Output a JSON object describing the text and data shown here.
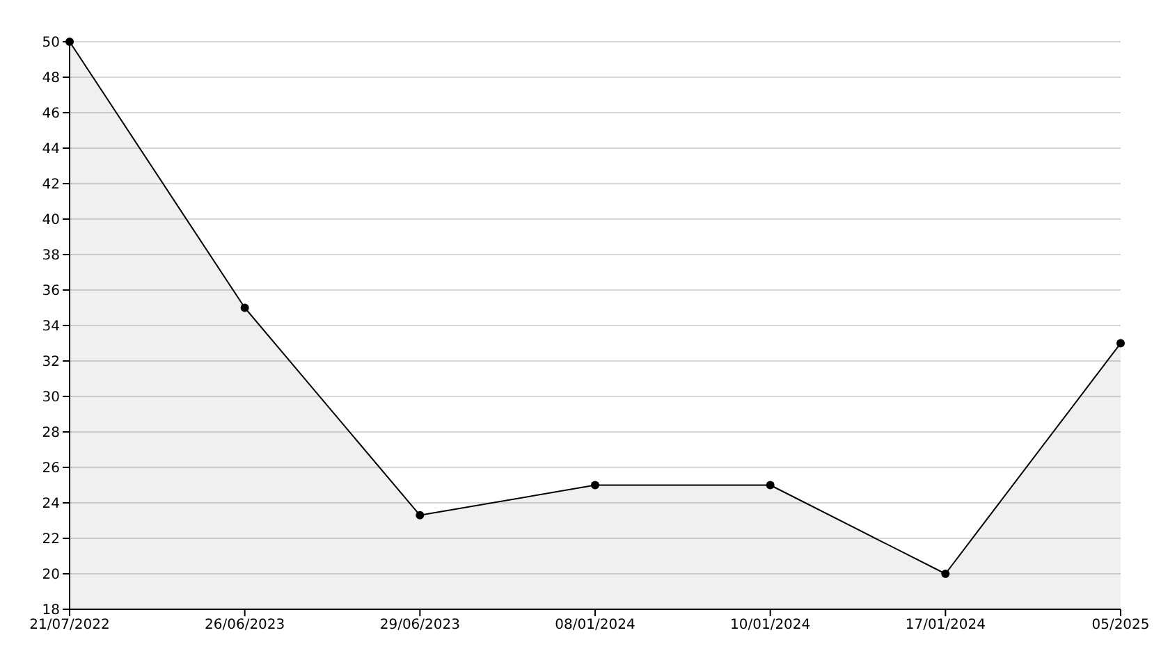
{
  "chart_data": {
    "type": "area",
    "categories": [
      "21/07/2022",
      "26/06/2023",
      "29/06/2023",
      "08/01/2024",
      "10/01/2024",
      "17/01/2024",
      "05/2025"
    ],
    "series": [
      {
        "color": "#000000",
        "values": [
          50,
          35,
          23.3,
          25,
          25,
          20,
          33
        ]
      }
    ],
    "ylim": [
      18,
      50
    ],
    "yticks": [
      18,
      20,
      22,
      24,
      26,
      28,
      30,
      32,
      34,
      36,
      38,
      40,
      42,
      44,
      46,
      48,
      50
    ],
    "grid": "y",
    "marker": "circle",
    "line_style": "solid",
    "legend": false
  }
}
